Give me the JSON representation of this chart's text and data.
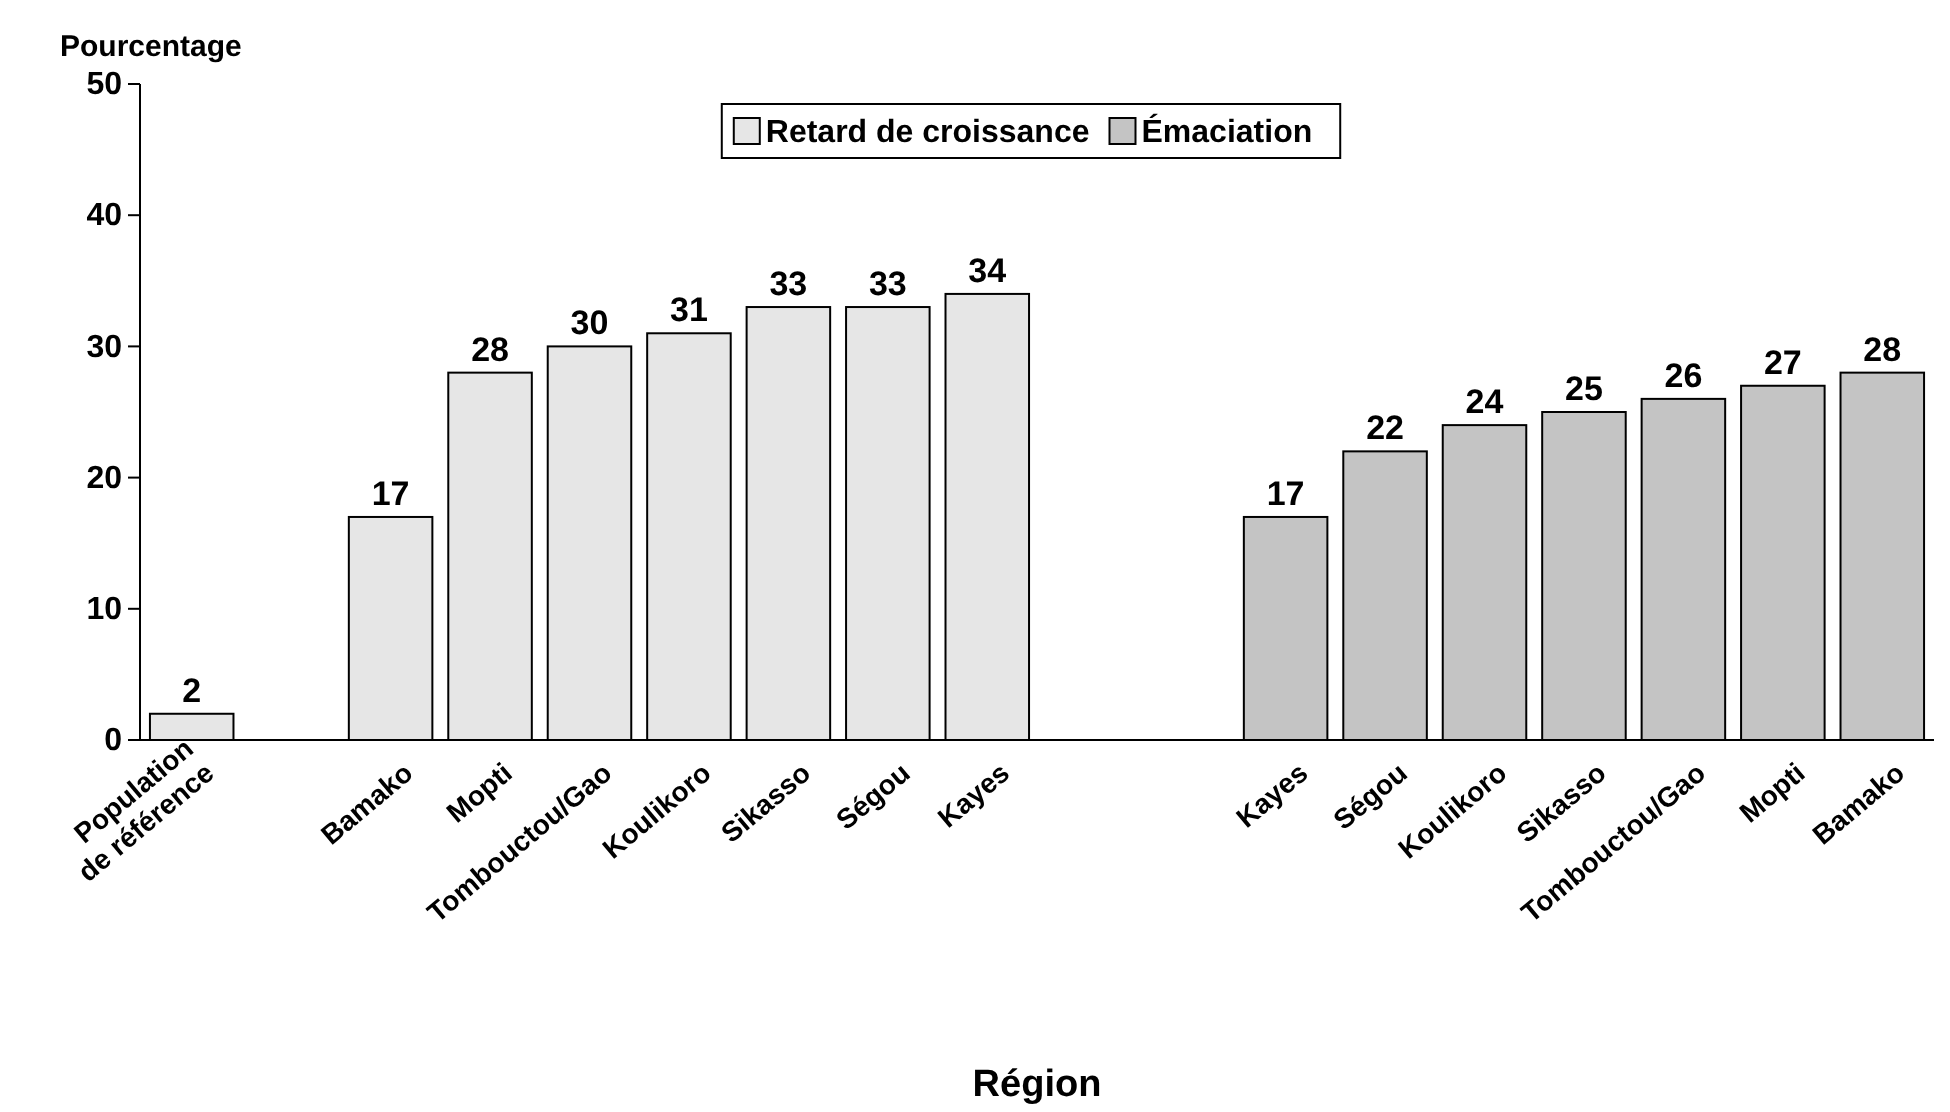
{
  "chart_data": {
    "type": "bar",
    "ylabel": "Pourcentage",
    "xlabel": "Région",
    "categories": [
      "Population de référence",
      null,
      "Bamako",
      "Mopti",
      "Tombouctou/Gao",
      "Koulikoro",
      "Sikasso",
      "Ségou",
      "Kayes",
      null,
      null,
      "Kayes",
      "Ségou",
      "Koulikoro",
      "Sikasso",
      "Tombouctou/Gao",
      "Mopti",
      "Bamako"
    ],
    "series": [
      {
        "name": "Retard de croissance",
        "color": "#e6e6e6",
        "values": [
          2,
          null,
          17,
          28,
          30,
          31,
          33,
          33,
          34,
          null,
          null,
          null,
          null,
          null,
          null,
          null,
          null,
          null
        ]
      },
      {
        "name": "Émaciation",
        "color": "#c4c4c4",
        "values": [
          null,
          null,
          null,
          null,
          null,
          null,
          null,
          null,
          null,
          null,
          null,
          17,
          22,
          24,
          25,
          26,
          27,
          28
        ]
      }
    ],
    "ylim": [
      0,
      50
    ],
    "yticks": [
      0,
      10,
      20,
      30,
      40,
      50
    ],
    "grid": false,
    "legend": "top",
    "data_labels": true
  }
}
